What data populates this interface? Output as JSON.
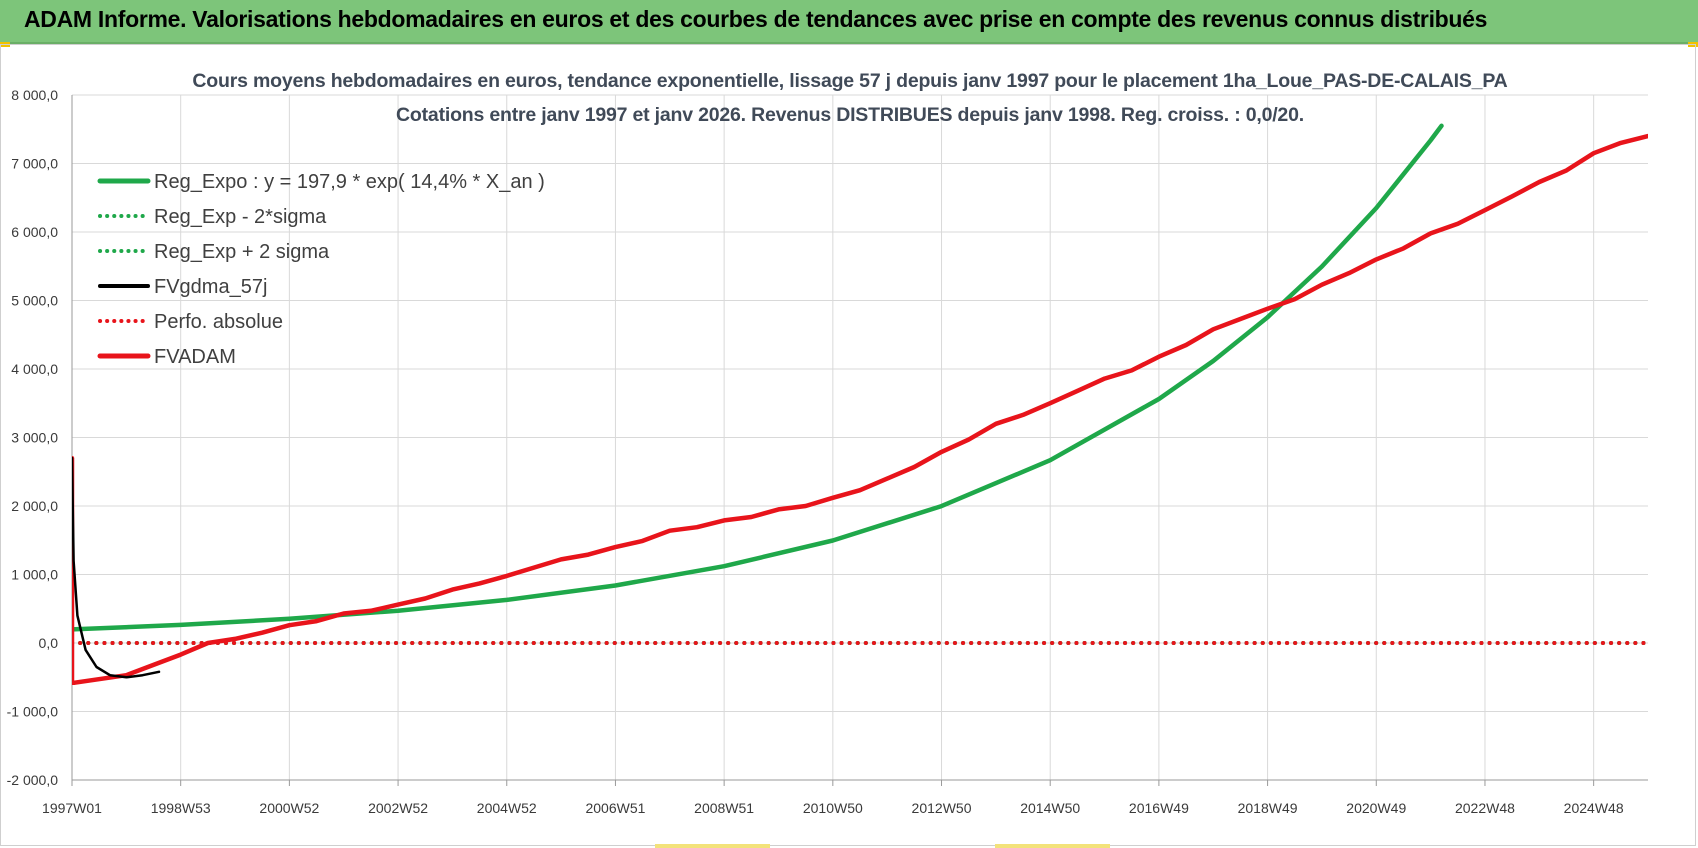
{
  "banner": {
    "title": "ADAM Informe. Valorisations hebdomadaires en euros et des courbes de tendances avec prise en compte des revenus connus distribués"
  },
  "colors": {
    "banner_bg": "#7dc57a",
    "reg_expo": "#1fa84a",
    "reg_sigma": "#1fa84a",
    "fvgdma": "#000000",
    "perfo": "#e8141b",
    "fvadam": "#e8141b"
  },
  "chart_data": {
    "type": "line",
    "title": "Cours moyens hebdomadaires en euros, tendance exponentielle, lissage 57 j depuis janv 1997  pour le placement 1ha_Loue_PAS-DE-CALAIS_PA",
    "subtitle": "Cotations entre janv 1997 et janv 2026. Revenus DISTRIBUES depuis janv 1998. Reg. croiss. : 0,0/20.",
    "xlabel": "",
    "ylabel": "",
    "ylim": [
      -2000,
      8000
    ],
    "xlim": [
      1997.0,
      2026.0
    ],
    "y_ticks": [
      -2000,
      -1000,
      0,
      1000,
      2000,
      3000,
      4000,
      5000,
      6000,
      7000,
      8000
    ],
    "y_tick_labels": [
      "-2 000,0",
      "-1 000,0",
      "0,0",
      "1 000,0",
      "2 000,0",
      "3 000,0",
      "4 000,0",
      "5 000,0",
      "6 000,0",
      "7 000,0",
      "8 000,0"
    ],
    "x_ticks": [
      1997.0,
      1999.0,
      2001.0,
      2003.0,
      2005.0,
      2007.0,
      2009.0,
      2011.0,
      2013.0,
      2015.0,
      2017.0,
      2019.0,
      2021.0,
      2023.0,
      2025.0
    ],
    "x_tick_labels": [
      "1997W01",
      "1998W53",
      "2000W52",
      "2002W52",
      "2004W52",
      "2006W51",
      "2008W51",
      "2010W50",
      "2012W50",
      "2014W50",
      "2016W49",
      "2018W49",
      "2020W49",
      "2022W48",
      "2024W48"
    ],
    "grid": true,
    "legend_position": "top-left",
    "series": [
      {
        "name": "Reg_Expo : y = 197,9 * exp( 14,4% *  X_an )",
        "style": "solid",
        "color": "#1fa84a",
        "x": [
          1997.0,
          1999.0,
          2001.0,
          2003.0,
          2005.0,
          2007.0,
          2009.0,
          2011.0,
          2013.0,
          2015.0,
          2017.0,
          2018.0,
          2019.0,
          2020.0,
          2021.0,
          2022.0,
          2022.2
        ],
        "values": [
          197.9,
          264.2,
          352.8,
          471.0,
          628.9,
          839.7,
          1121.0,
          1496.8,
          1998.4,
          2668.2,
          3562.5,
          4116.3,
          4756.3,
          5495.8,
          6350.2,
          7337.4,
          7550.0
        ]
      },
      {
        "name": "Reg_Exp - 2*sigma",
        "style": "dotted",
        "color": "#1fa84a",
        "x": [
          1997.0,
          2026.0
        ],
        "values": [
          0,
          0
        ]
      },
      {
        "name": "Reg_Exp + 2 sigma",
        "style": "dotted",
        "color": "#1fa84a",
        "x": [
          1997.0,
          2026.0
        ],
        "values": [
          0,
          0
        ]
      },
      {
        "name": "FVgdma_57j",
        "style": "solid",
        "color": "#000000",
        "x": [
          1997.0,
          1997.03,
          1997.1,
          1997.25,
          1997.45,
          1997.7,
          1998.0,
          1998.3,
          1998.6
        ],
        "values": [
          2700,
          1200,
          400,
          -100,
          -350,
          -470,
          -500,
          -470,
          -420
        ]
      },
      {
        "name": "Perfo. absolue",
        "style": "dotted",
        "color": "#e8141b",
        "x": [
          1997.0,
          2026.0
        ],
        "values": [
          0,
          0
        ]
      },
      {
        "name": "FVADAM",
        "style": "solid",
        "color": "#e8141b",
        "x": [
          1997.0,
          1997.0,
          1997.05,
          1998.0,
          1998.5,
          1999.0,
          1999.5,
          2000.0,
          2000.5,
          2001.0,
          2001.5,
          2002.0,
          2002.5,
          2003.0,
          2003.5,
          2004.0,
          2004.5,
          2005.0,
          2005.5,
          2006.0,
          2006.5,
          2007.0,
          2007.5,
          2008.0,
          2008.5,
          2009.0,
          2009.5,
          2010.0,
          2010.5,
          2011.0,
          2011.5,
          2012.0,
          2012.5,
          2013.0,
          2013.5,
          2014.0,
          2014.5,
          2015.0,
          2015.5,
          2016.0,
          2016.5,
          2017.0,
          2017.5,
          2018.0,
          2018.5,
          2019.0,
          2019.5,
          2020.0,
          2020.5,
          2021.0,
          2021.5,
          2022.0,
          2022.5,
          2023.0,
          2023.5,
          2024.0,
          2024.5,
          2025.0,
          2025.5,
          2026.0
        ],
        "values": [
          2700,
          -580,
          -580,
          -470,
          -320,
          -170,
          0,
          60,
          150,
          260,
          320,
          430,
          470,
          560,
          650,
          780,
          870,
          980,
          1100,
          1220,
          1290,
          1400,
          1490,
          1640,
          1690,
          1790,
          1840,
          1950,
          2000,
          2120,
          2230,
          2400,
          2570,
          2790,
          2970,
          3200,
          3330,
          3500,
          3680,
          3860,
          3980,
          4180,
          4350,
          4580,
          4730,
          4880,
          5020,
          5230,
          5400,
          5600,
          5760,
          5980,
          6120,
          6320,
          6520,
          6730,
          6900,
          7150,
          7300,
          7400
        ]
      }
    ]
  }
}
